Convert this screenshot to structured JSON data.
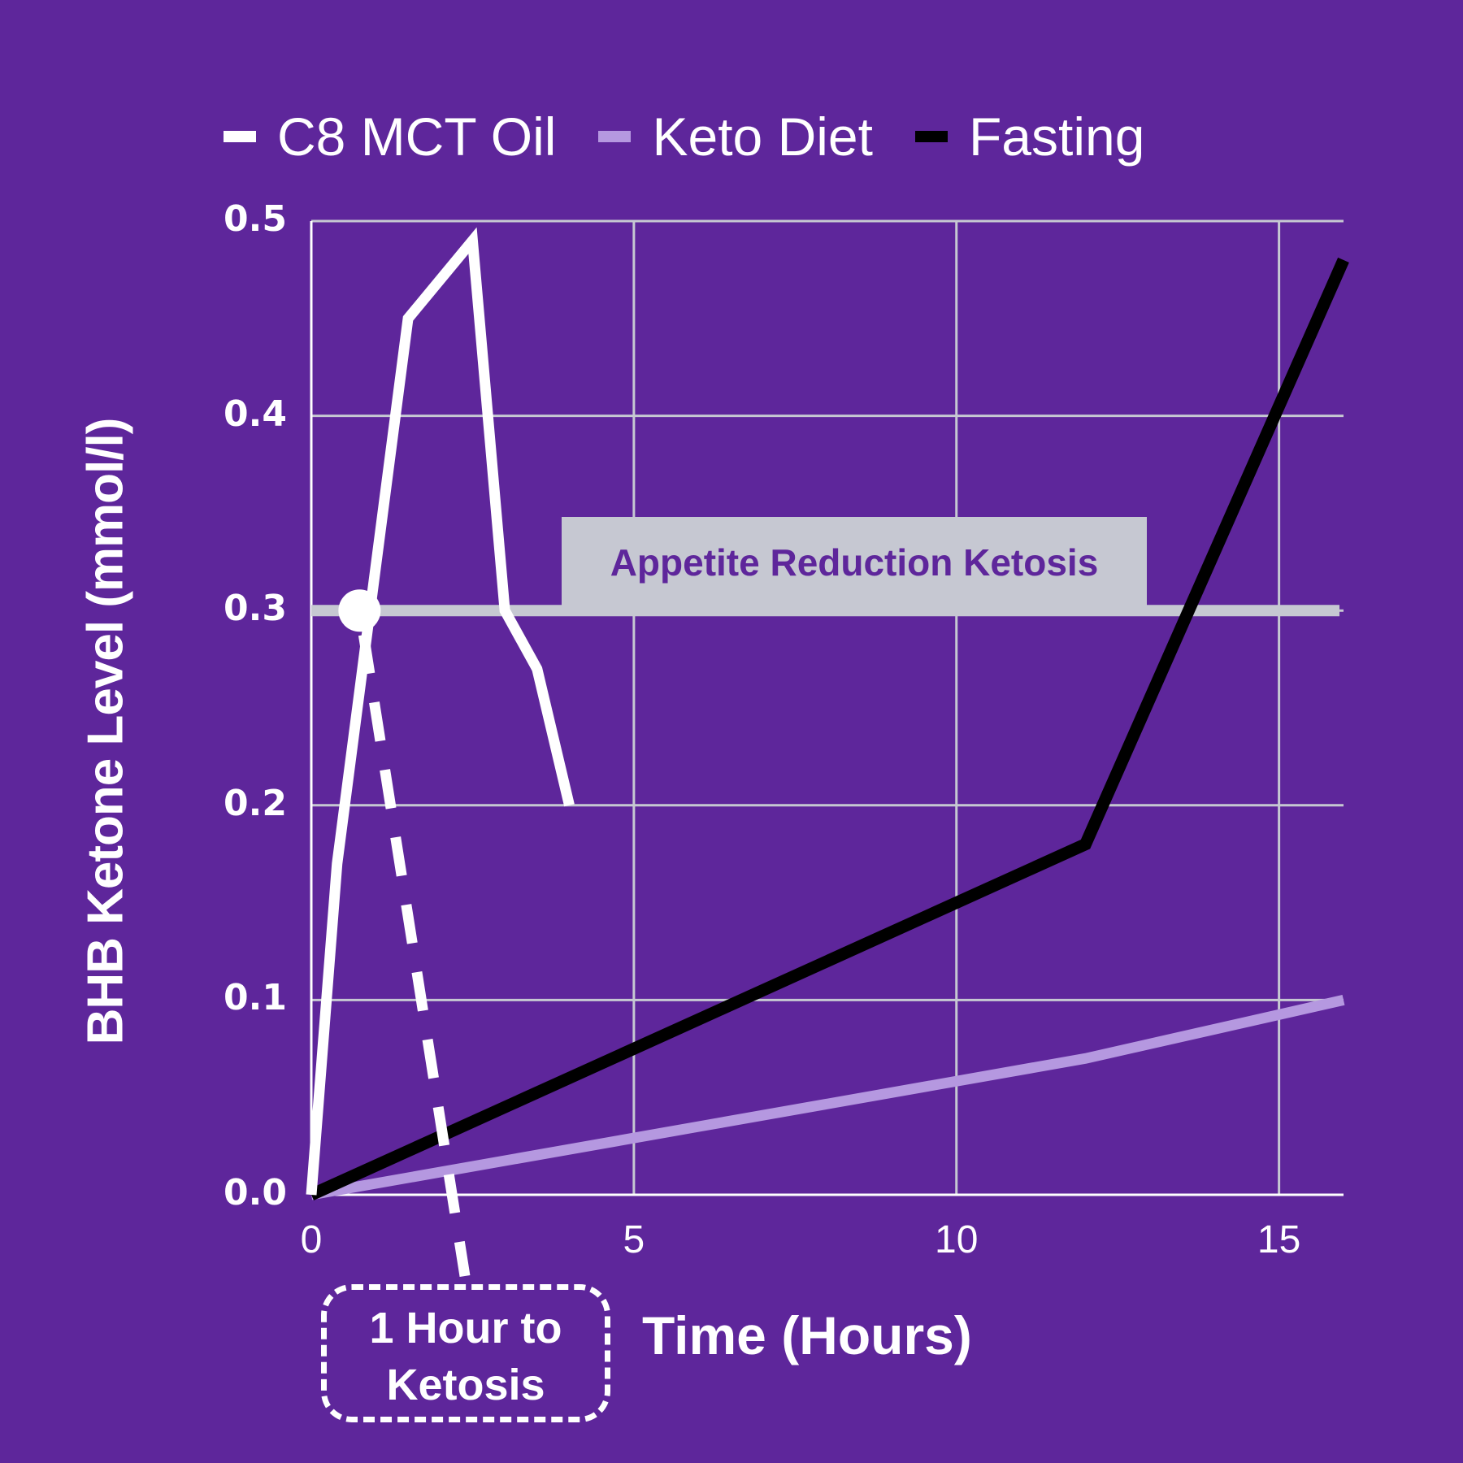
{
  "chart_data": {
    "type": "line",
    "title": "",
    "xlabel": "Time (Hours)",
    "ylabel": "BHB Ketone Level (mmol/l)",
    "xlim": [
      0,
      16
    ],
    "ylim": [
      0,
      0.5
    ],
    "xticks": [
      0,
      5,
      10,
      15
    ],
    "xtick_labels": [
      "0",
      "5",
      "10",
      "15"
    ],
    "yticks": [
      0,
      0.1,
      0.2,
      0.3,
      0.4,
      0.5
    ],
    "ytick_labels": [
      "0.0",
      "0.1",
      "0.2",
      "0.3",
      "0.4",
      "0.5"
    ],
    "grid": true,
    "legend_position": "top",
    "series": [
      {
        "name": "C8 MCT Oil",
        "color": "#ffffff",
        "points": [
          [
            0,
            0
          ],
          [
            0.4,
            0.17
          ],
          [
            1.5,
            0.45
          ],
          [
            2.5,
            0.49
          ],
          [
            3.0,
            0.3
          ],
          [
            3.5,
            0.27
          ],
          [
            4.0,
            0.2
          ]
        ]
      },
      {
        "name": "Keto Diet",
        "color": "#b598e0",
        "points": [
          [
            0,
            0
          ],
          [
            6,
            0.035
          ],
          [
            12,
            0.07
          ],
          [
            16,
            0.1
          ]
        ]
      },
      {
        "name": "Fasting",
        "color": "#000000",
        "points": [
          [
            0,
            0
          ],
          [
            12,
            0.18
          ],
          [
            16,
            0.48
          ]
        ]
      }
    ],
    "threshold": {
      "label": "Appetite Reduction Ketosis",
      "value": 0.3,
      "color": "#c6c8d2"
    },
    "marker": {
      "x": 1.0,
      "y": 0.3,
      "label": "1 Hour to Ketosis"
    }
  },
  "legend": [
    {
      "label": "C8 MCT Oil",
      "color": "#ffffff"
    },
    {
      "label": "Keto Diet",
      "color": "#b598e0"
    },
    {
      "label": "Fasting",
      "color": "#000000"
    }
  ],
  "annotation": {
    "line1": "1 Hour to",
    "line2": "Ketosis"
  },
  "colors": {
    "background": "#5e269b",
    "grid": "#c6c8d2"
  }
}
